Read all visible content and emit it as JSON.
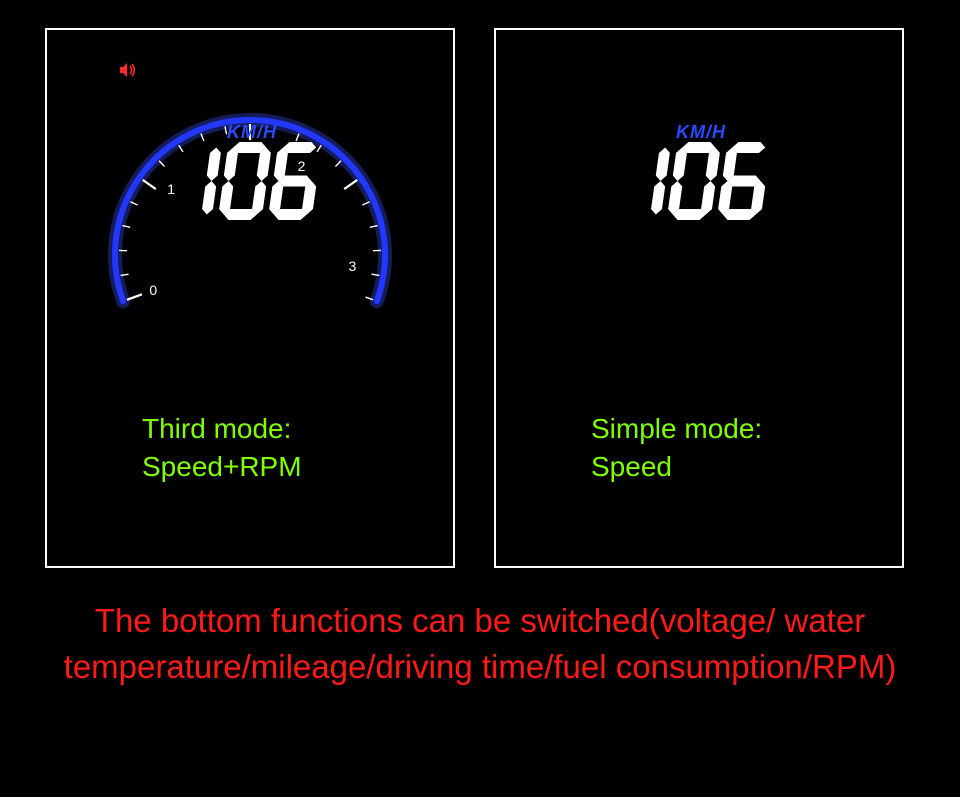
{
  "colors": {
    "background": "#000000",
    "panel_border": "#ffffff",
    "arc": "#2238ff",
    "arc_glow": "#3a50ff",
    "digit": "#ffffff",
    "unit": "#2a4aff",
    "caption": "#7fff00",
    "footer": "#ff1a1a",
    "speaker": "#ff2a2a",
    "tick": "#ffffff"
  },
  "panels": {
    "left": {
      "mode_title": "Third mode:",
      "mode_subtitle": "Speed+RPM",
      "unit": "KM/H",
      "speed_digits": [
        "1",
        "0",
        "6"
      ],
      "gauge": {
        "type": "arc",
        "start_angle_deg": 200,
        "end_angle_deg": -20,
        "radius": 135,
        "stroke_width": 6,
        "tick_count": 21,
        "major_labels": [
          "0",
          "1",
          "2",
          "3"
        ],
        "major_label_positions_deg": [
          200,
          140,
          60,
          -6
        ]
      },
      "speaker_icon": true
    },
    "right": {
      "mode_title": "Simple mode:",
      "mode_subtitle": "Speed",
      "unit": "KM/H",
      "speed_digits": [
        "1",
        "0",
        "6"
      ]
    }
  },
  "footer": "The bottom functions can be switched(voltage/ water temperature/mileage/driving time/fuel consumption/RPM)",
  "digit_style": {
    "width": 44,
    "height": 78,
    "segment_thickness": 11,
    "skew_deg": -8,
    "color": "#ffffff"
  }
}
